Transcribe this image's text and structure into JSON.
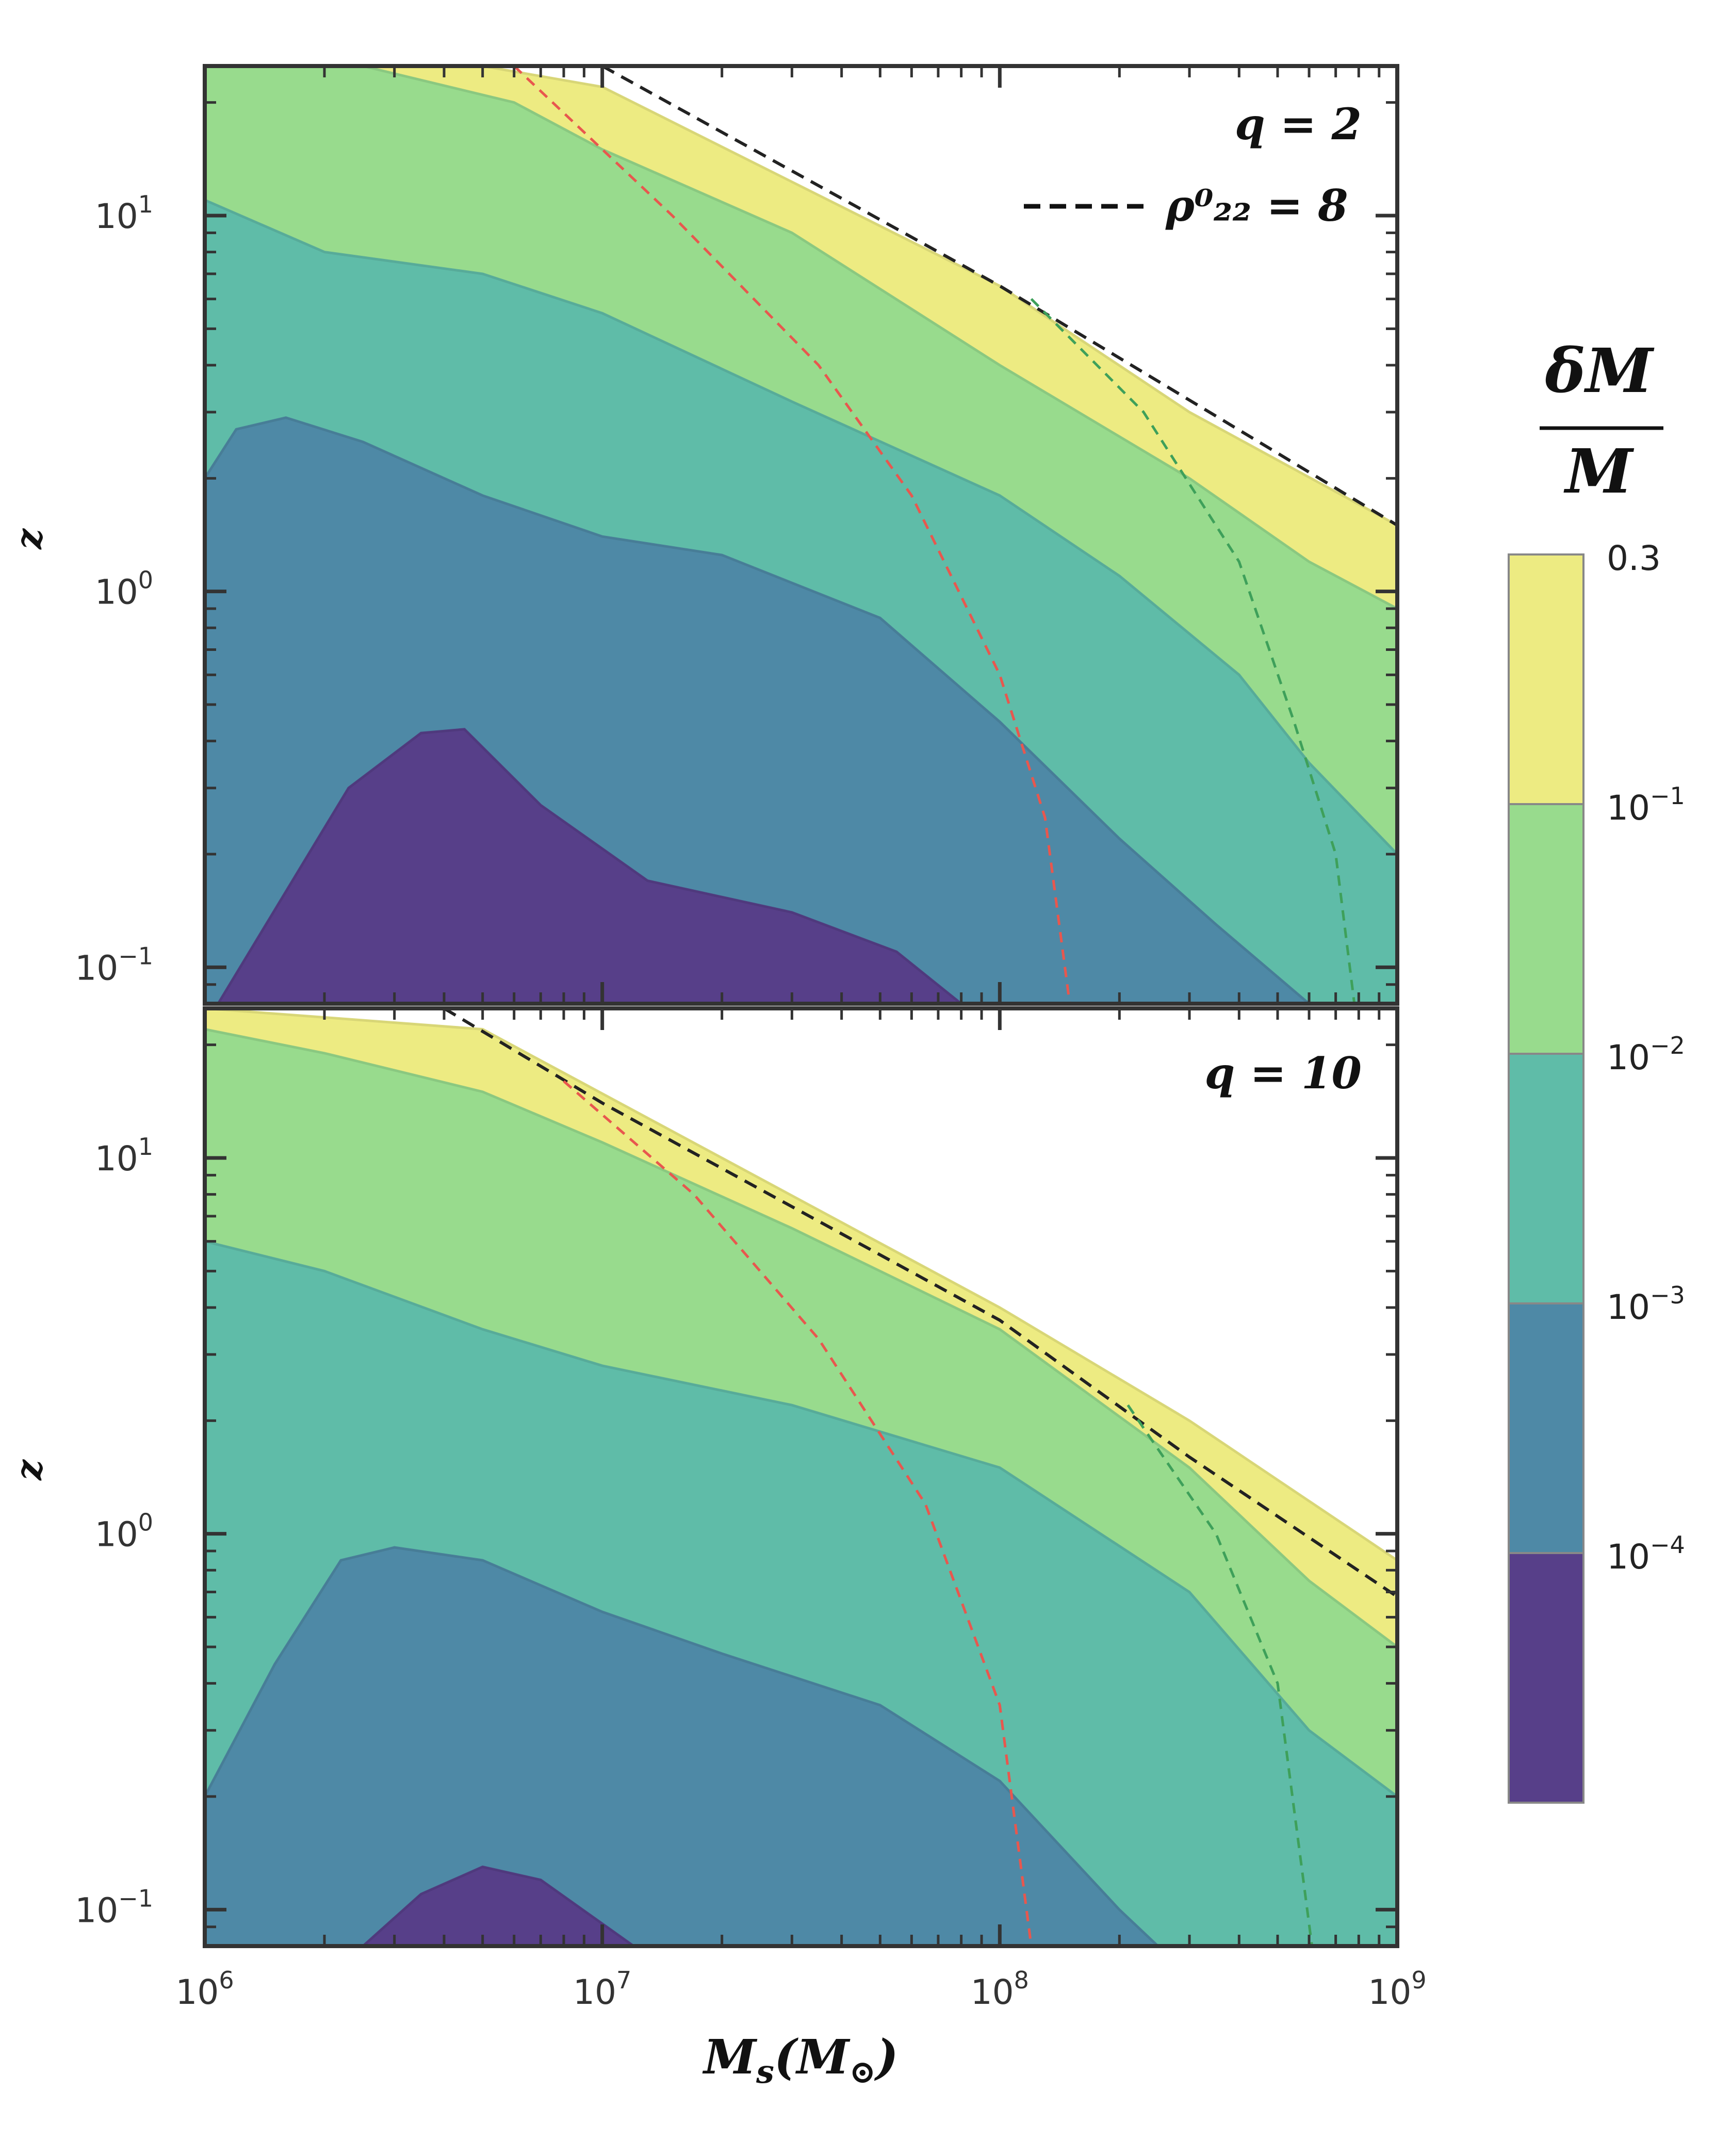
{
  "chart_data": [
    {
      "type": "contourf",
      "panel": "top",
      "annotation": "q = 2",
      "legend": {
        "entries": [
          {
            "style": "black dashed",
            "label": "ρ⁰₂₂ = 8"
          }
        ],
        "placement": "upper-right"
      },
      "ylabel": "z",
      "xlabel": "",
      "x_scale": "log",
      "y_scale": "log",
      "xlim": [
        1000000,
        1000000000
      ],
      "ylim": [
        0.08,
        25
      ],
      "y_ticks": [
        "10^0",
        "10^1",
        "10^-1"
      ],
      "x_ticks": [],
      "contours": [
        {
          "level": "purple",
          "boundary": [
            [
              1080000.0,
              0.08
            ],
            [
              2300000.0,
              0.3
            ],
            [
              3500000.0,
              0.42
            ],
            [
              4500000.0,
              0.43
            ],
            [
              7000000.0,
              0.27
            ],
            [
              13000000.0,
              0.17
            ],
            [
              30000000.0,
              0.14
            ],
            [
              55000000.0,
              0.11
            ],
            [
              80000000.0,
              0.08
            ]
          ]
        },
        {
          "level": "blue",
          "boundary": [
            [
              1000000.0,
              2.0
            ],
            [
              1200000.0,
              2.7
            ],
            [
              1600000.0,
              2.9
            ],
            [
              2500000.0,
              2.5
            ],
            [
              5000000.0,
              1.8
            ],
            [
              10000000.0,
              1.4
            ],
            [
              20000000.0,
              1.25
            ],
            [
              50000000.0,
              0.85
            ],
            [
              100000000.0,
              0.45
            ],
            [
              200000000.0,
              0.22
            ],
            [
              350000000.0,
              0.13
            ],
            [
              600000000.0,
              0.08
            ]
          ]
        },
        {
          "level": "teal",
          "boundary": [
            [
              1000000.0,
              11
            ],
            [
              2000000.0,
              8
            ],
            [
              5000000.0,
              7
            ],
            [
              10000000.0,
              5.5
            ],
            [
              30000000.0,
              3.2
            ],
            [
              100000000.0,
              1.8
            ],
            [
              200000000.0,
              1.1
            ],
            [
              400000000.0,
              0.6
            ],
            [
              600000000.0,
              0.35
            ],
            [
              1000000000.0,
              0.2
            ]
          ]
        },
        {
          "level": "green",
          "boundary": [
            [
              2500000.0,
              25
            ],
            [
              6000000.0,
              20
            ],
            [
              10000000.0,
              15
            ],
            [
              30000000.0,
              9
            ],
            [
              100000000.0,
              4
            ],
            [
              300000000.0,
              2
            ],
            [
              600000000.0,
              1.2
            ],
            [
              1000000000.0,
              0.9
            ]
          ]
        },
        {
          "level": "yellow",
          "boundary": [
            [
              5000000.0,
              25
            ],
            [
              10000000.0,
              22
            ],
            [
              100000000.0,
              6.5
            ],
            [
              300000000.0,
              3
            ],
            [
              1000000000.0,
              1.5
            ]
          ]
        }
      ],
      "lines": [
        {
          "name": "ρ⁰₂₂ = 8 boundary",
          "color": "black",
          "style": "dashed",
          "points": [
            [
              10000000.0,
              25
            ],
            [
              100000000.0,
              6.5
            ],
            [
              1000000000.0,
              1.5
            ]
          ]
        },
        {
          "name": "red curve",
          "color": "#e8574e",
          "style": "dashed",
          "points": [
            [
              6000000.0,
              25
            ],
            [
              15000000.0,
              10
            ],
            [
              35000000.0,
              4
            ],
            [
              60000000.0,
              1.8
            ],
            [
              100000000.0,
              0.6
            ],
            [
              130000000.0,
              0.25
            ],
            [
              150000000.0,
              0.08
            ]
          ]
        },
        {
          "name": "green curve",
          "color": "#3ea05a",
          "style": "dashed",
          "points": [
            [
              120000000.0,
              6
            ],
            [
              230000000.0,
              3
            ],
            [
              400000000.0,
              1.2
            ],
            [
              550000000.0,
              0.45
            ],
            [
              700000000.0,
              0.2
            ],
            [
              780000000.0,
              0.08
            ]
          ]
        }
      ]
    },
    {
      "type": "contourf",
      "panel": "bottom",
      "annotation": "q = 10",
      "ylabel": "z",
      "xlabel": "M_s(M_⊙)",
      "x_scale": "log",
      "y_scale": "log",
      "xlim": [
        1000000,
        1000000000
      ],
      "ylim": [
        0.08,
        25
      ],
      "y_ticks": [
        "10^0",
        "10^1",
        "10^-1"
      ],
      "x_ticks": [
        "10^6",
        "10^7",
        "10^8",
        "10^9"
      ],
      "contours": [
        {
          "level": "purple",
          "boundary": [
            [
              2500000.0,
              0.08
            ],
            [
              3500000.0,
              0.11
            ],
            [
              5000000.0,
              0.13
            ],
            [
              7000000.0,
              0.12
            ],
            [
              12000000.0,
              0.08
            ]
          ]
        },
        {
          "level": "blue",
          "boundary": [
            [
              1000000.0,
              0.2
            ],
            [
              1500000.0,
              0.45
            ],
            [
              2200000.0,
              0.85
            ],
            [
              3000000.0,
              0.92
            ],
            [
              5000000.0,
              0.85
            ],
            [
              10000000.0,
              0.62
            ],
            [
              20000000.0,
              0.48
            ],
            [
              50000000.0,
              0.35
            ],
            [
              100000000.0,
              0.22
            ],
            [
              200000000.0,
              0.1
            ],
            [
              250000000.0,
              0.08
            ]
          ]
        },
        {
          "level": "teal",
          "boundary": [
            [
              1000000.0,
              6
            ],
            [
              2000000.0,
              5
            ],
            [
              5000000.0,
              3.5
            ],
            [
              10000000.0,
              2.8
            ],
            [
              30000000.0,
              2.2
            ],
            [
              100000000.0,
              1.5
            ],
            [
              300000000.0,
              0.7
            ],
            [
              600000000.0,
              0.3
            ],
            [
              1000000000.0,
              0.2
            ]
          ]
        },
        {
          "level": "green",
          "boundary": [
            [
              1000000.0,
              22
            ],
            [
              2000000.0,
              19
            ],
            [
              5000000.0,
              15
            ],
            [
              10000000.0,
              11
            ],
            [
              30000000.0,
              6.5
            ],
            [
              100000000.0,
              3.5
            ],
            [
              300000000.0,
              1.5
            ],
            [
              600000000.0,
              0.75
            ],
            [
              1000000000.0,
              0.5
            ]
          ]
        },
        {
          "level": "yellow",
          "boundary": [
            [
              1000000.0,
              25
            ],
            [
              5000000.0,
              22
            ],
            [
              20000000.0,
              10
            ],
            [
              100000000.0,
              4
            ],
            [
              300000000.0,
              2
            ],
            [
              1000000000.0,
              0.85
            ]
          ]
        }
      ],
      "lines": [
        {
          "name": "ρ⁰₂₂ = 8 boundary",
          "color": "black",
          "style": "dashed",
          "points": [
            [
              4000000.0,
              25
            ],
            [
              10000000.0,
              14
            ],
            [
              100000000.0,
              3.7
            ],
            [
              300000000.0,
              1.6
            ],
            [
              1000000000.0,
              0.68
            ]
          ]
        },
        {
          "name": "red curve",
          "color": "#e8574e",
          "style": "dashed",
          "points": [
            [
              8000000.0,
              16
            ],
            [
              17000000.0,
              8
            ],
            [
              35000000.0,
              3.3
            ],
            [
              65000000.0,
              1.2
            ],
            [
              100000000.0,
              0.35
            ],
            [
              120000000.0,
              0.08
            ]
          ]
        },
        {
          "name": "green curve",
          "color": "#3ea05a",
          "style": "dashed",
          "points": [
            [
              210000000.0,
              2.2
            ],
            [
              350000000.0,
              1.0
            ],
            [
              500000000.0,
              0.4
            ],
            [
              610000000.0,
              0.08
            ]
          ]
        }
      ]
    }
  ],
  "colorbar": {
    "title_numerator": "δM",
    "title_denominator": "M",
    "bands": [
      {
        "name": "yellow",
        "color": "#edeb82"
      },
      {
        "name": "green",
        "color": "#98db8d"
      },
      {
        "name": "teal",
        "color": "#5fbca8"
      },
      {
        "name": "blue",
        "color": "#4e89a6"
      },
      {
        "name": "purple",
        "color": "#573f89"
      }
    ],
    "tick_labels": [
      {
        "base": "0.3",
        "exp": ""
      },
      {
        "base": "10",
        "exp": "−1"
      },
      {
        "base": "10",
        "exp": "−2"
      },
      {
        "base": "10",
        "exp": "−3"
      },
      {
        "base": "10",
        "exp": "−4"
      }
    ]
  },
  "labels": {
    "q2": "q = 2",
    "q10": "q = 10",
    "legend": "ρ⁰₂₂ = 8",
    "ylabel": "z",
    "xlabel_base": "M",
    "xlabel_sub": "s",
    "xlabel_paren": "(M",
    "xlabel_sun": "⊙",
    "xlabel_close": ")"
  }
}
